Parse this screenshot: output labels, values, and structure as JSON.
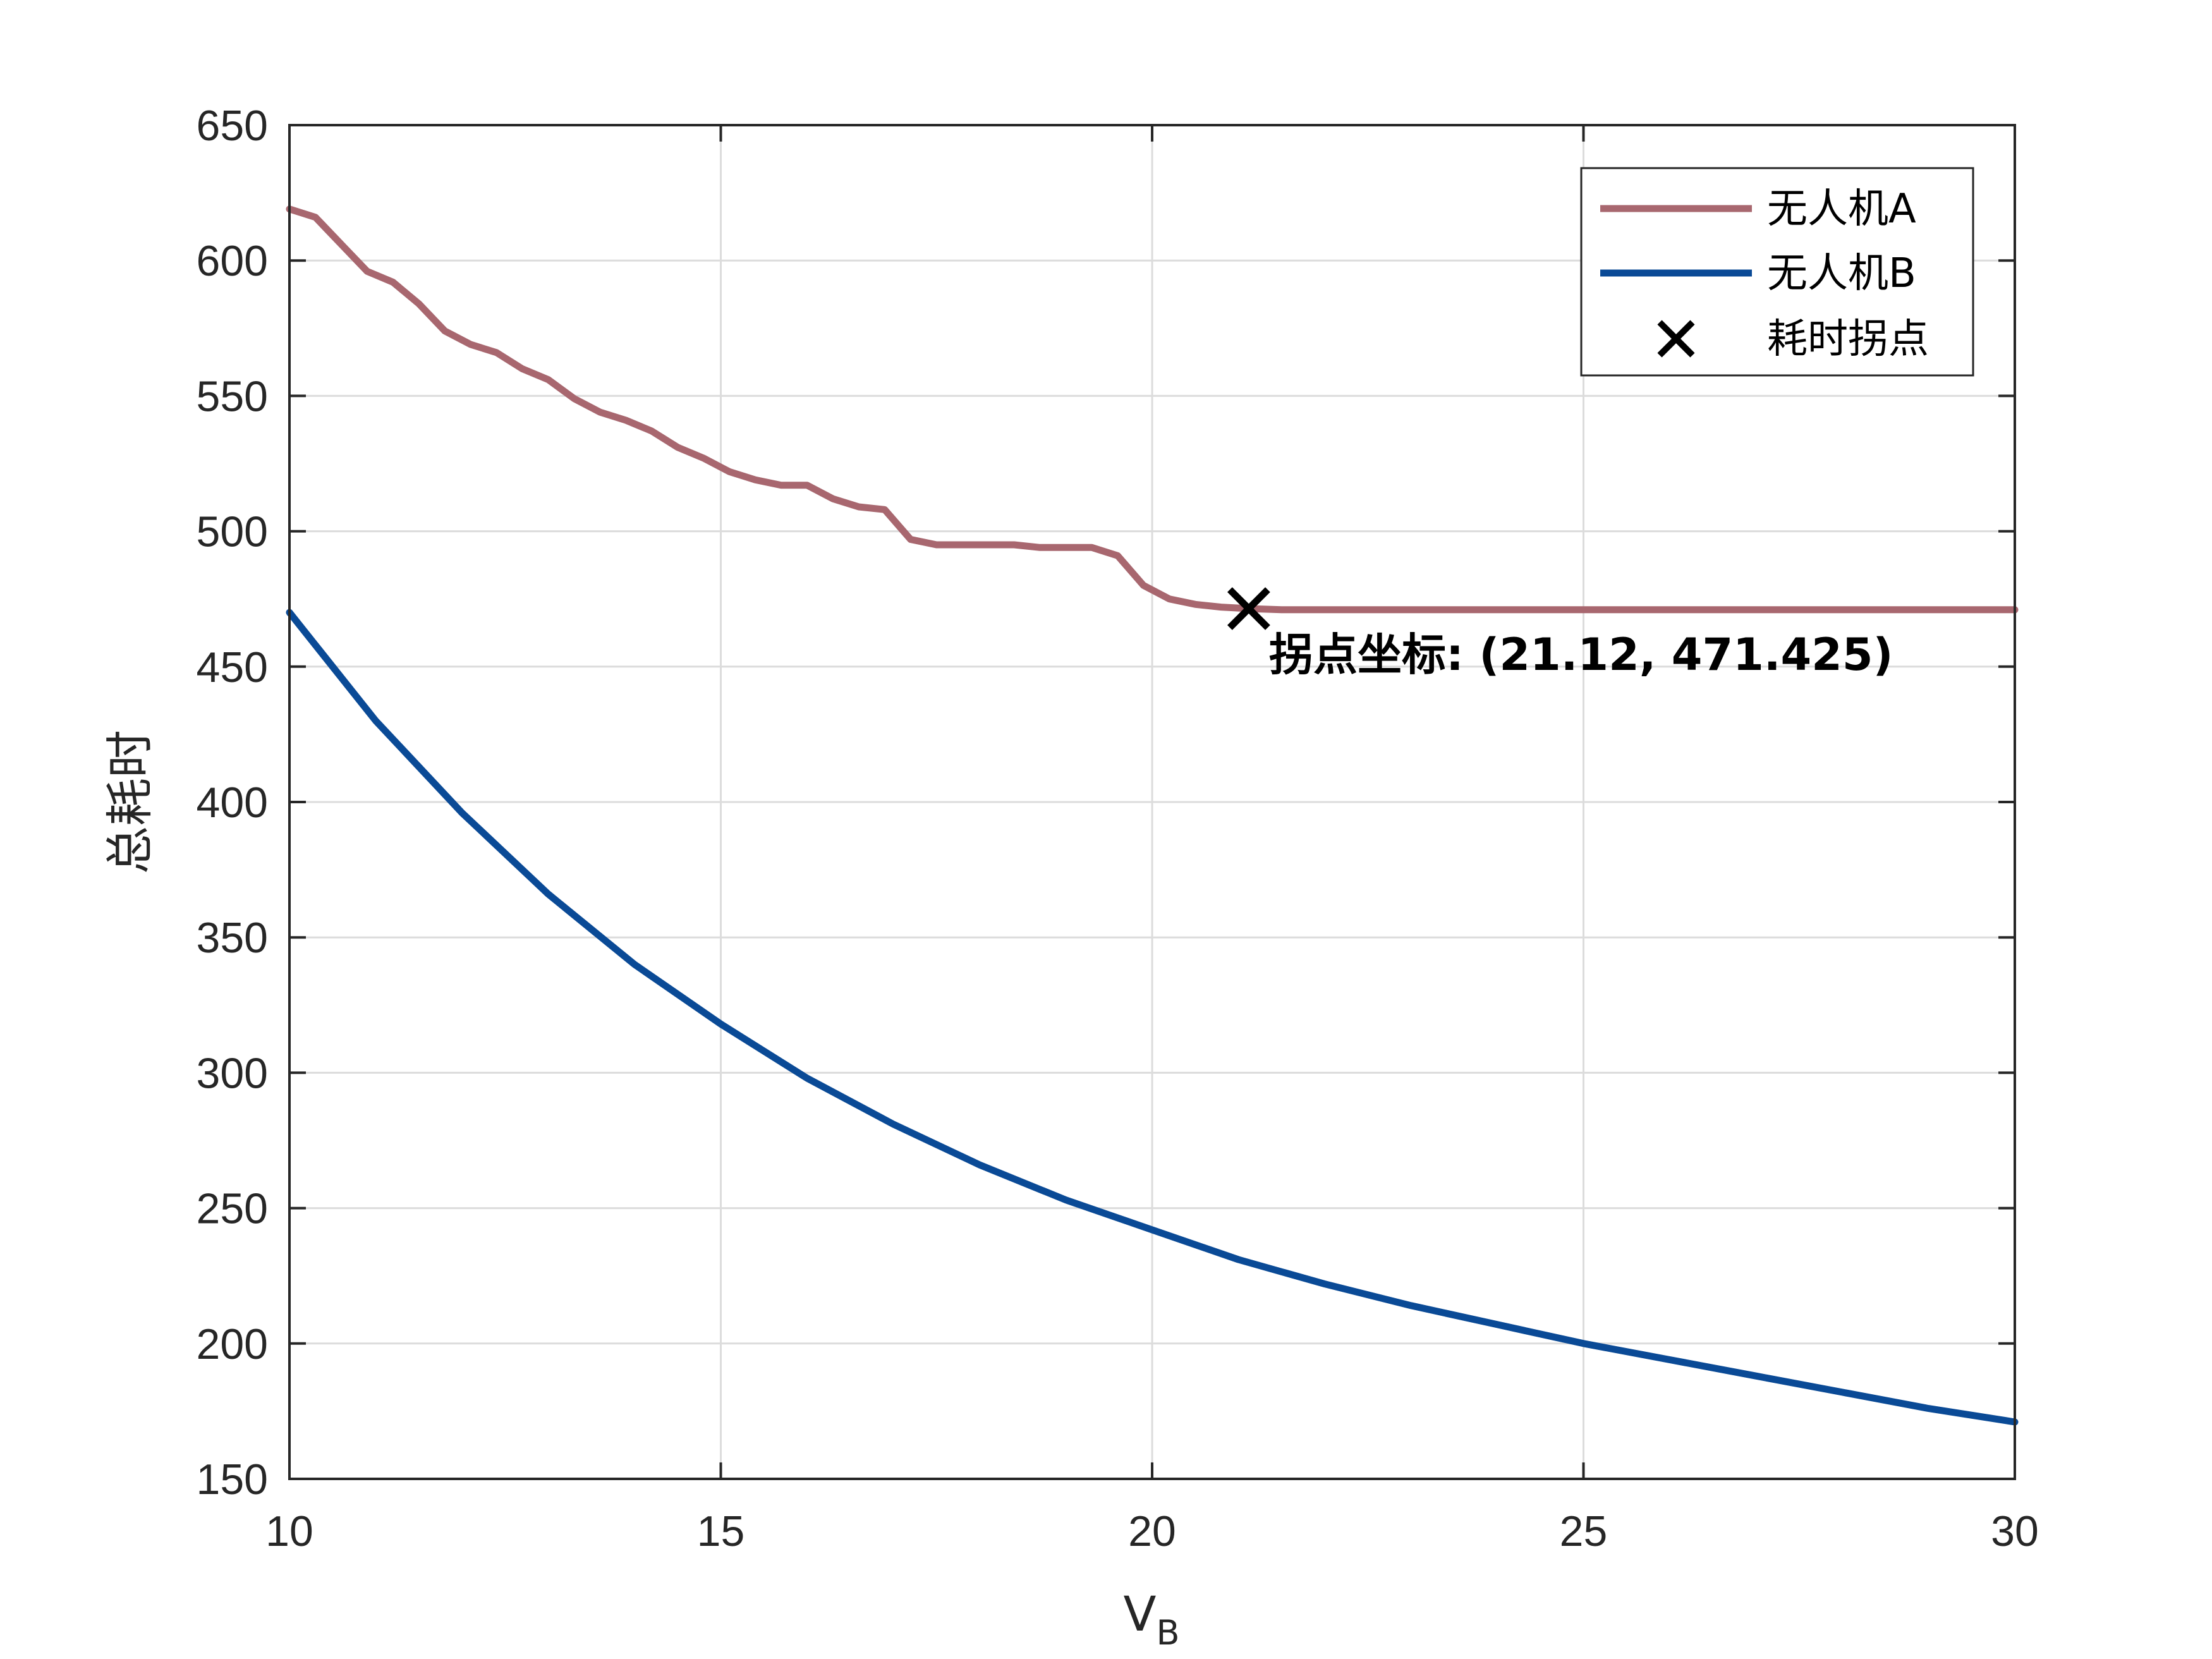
{
  "chart_data": {
    "type": "line",
    "xlabel": "V",
    "xlabel_sub": "B",
    "ylabel": "总耗时",
    "xlim": [
      10,
      30
    ],
    "ylim": [
      150,
      650
    ],
    "xticks": [
      10,
      15,
      20,
      25,
      30
    ],
    "yticks": [
      150,
      200,
      250,
      300,
      350,
      400,
      450,
      500,
      550,
      600,
      650
    ],
    "grid": true,
    "legend_position": "top-right",
    "series": [
      {
        "name": "无人机A",
        "color": "#a8676f",
        "x": [
          10.0,
          10.3,
          10.6,
          10.9,
          11.2,
          11.5,
          11.8,
          12.1,
          12.4,
          12.7,
          13.0,
          13.3,
          13.6,
          13.9,
          14.2,
          14.5,
          14.8,
          15.1,
          15.4,
          15.7,
          16.0,
          16.3,
          16.6,
          16.9,
          17.2,
          17.5,
          17.8,
          18.1,
          18.4,
          18.7,
          19.0,
          19.3,
          19.6,
          19.9,
          20.2,
          20.5,
          20.8,
          21.12,
          21.5,
          22.0,
          23.0,
          24.0,
          25.0,
          26.0,
          27.0,
          28.0,
          29.0,
          30.0
        ],
        "values": [
          619,
          616,
          606,
          596,
          592,
          584,
          574,
          569,
          566,
          560,
          556,
          549,
          544,
          541,
          537,
          531,
          527,
          522,
          519,
          517,
          517,
          512,
          509,
          508,
          497,
          495,
          495,
          495,
          495,
          494,
          494,
          494,
          491,
          480,
          475,
          473,
          472,
          471.425,
          471,
          471,
          471,
          471,
          471,
          471,
          471,
          471,
          471,
          471
        ]
      },
      {
        "name": "无人机B",
        "color": "#0a4a96",
        "x": [
          10,
          11,
          12,
          13,
          14,
          15,
          16,
          17,
          18,
          19,
          20,
          21,
          22,
          23,
          24,
          25,
          26,
          27,
          28,
          29,
          30
        ],
        "values": [
          470,
          430,
          396,
          366,
          340,
          318,
          298,
          281,
          266,
          253,
          242,
          231,
          222,
          214,
          207,
          200,
          194,
          188,
          182,
          176,
          171
        ]
      }
    ],
    "marker": {
      "name": "耗时拐点",
      "x": 21.12,
      "y": 471.425,
      "label": "拐点坐标: (21.12, 471.425)"
    }
  }
}
